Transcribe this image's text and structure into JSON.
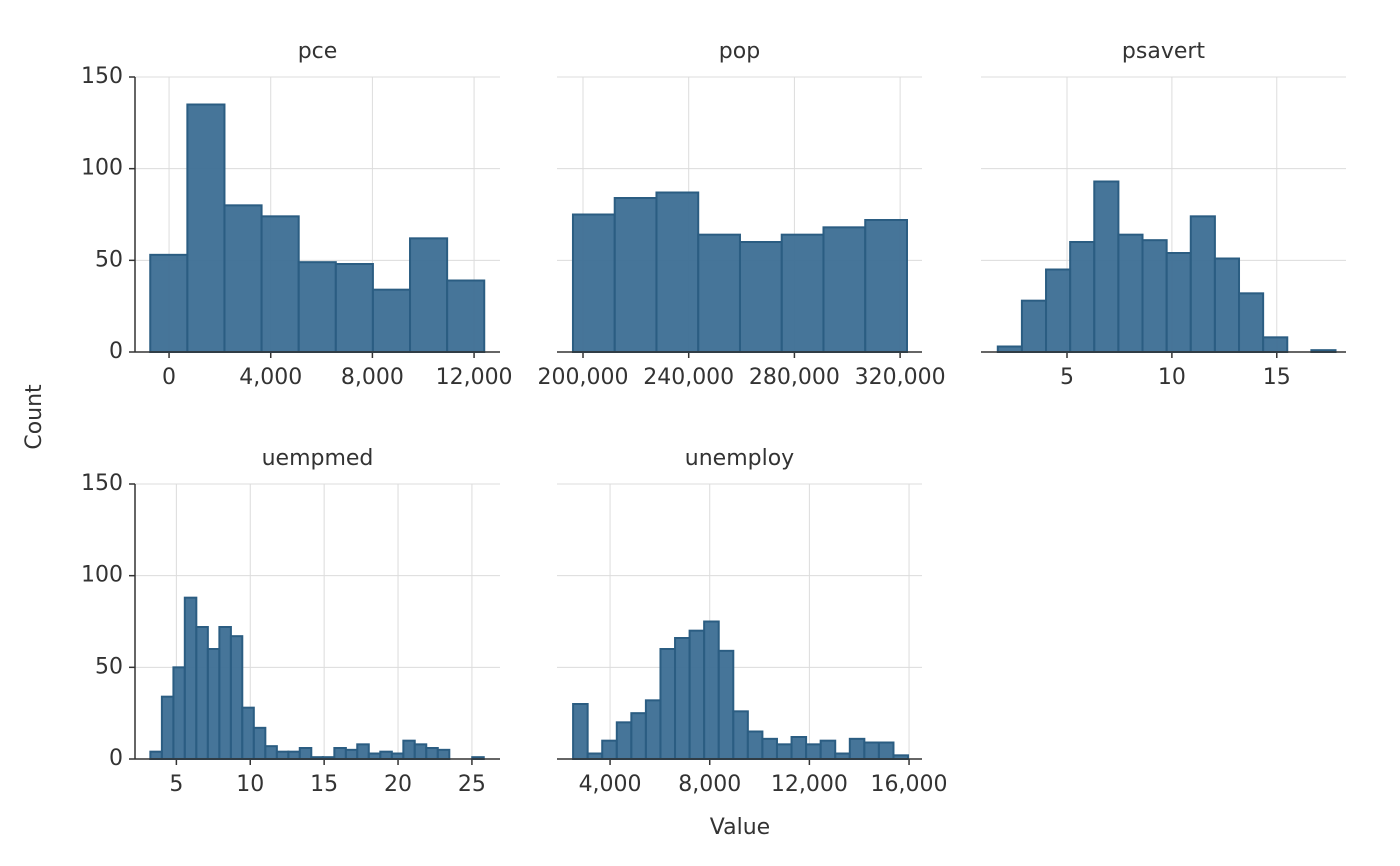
{
  "xlabel": "Value",
  "ylabel": "Count",
  "chart_data": [
    {
      "type": "histogram",
      "title": "pce",
      "color": "#3c6e93",
      "edge_color": "#2b5d82",
      "grid": true,
      "bins": [
        -740,
        720,
        2180,
        3640,
        5100,
        6560,
        8020,
        9480,
        10940,
        12400
      ],
      "values": [
        53,
        135,
        80,
        74,
        49,
        48,
        34,
        62,
        39
      ],
      "xlim": [
        -1340,
        13020
      ],
      "ylim": [
        0,
        150
      ],
      "xticks": [
        0,
        {
          "value": 4000,
          "label": "4,000"
        },
        {
          "value": 8000,
          "label": "8,000"
        },
        {
          "value": 12000,
          "label": "12,000"
        }
      ],
      "yticks": [
        0,
        50,
        100,
        150
      ]
    },
    {
      "type": "histogram",
      "title": "pop",
      "color": "#3c6e93",
      "edge_color": "#2b5d82",
      "grid": true,
      "bins": [
        196200,
        212000,
        227800,
        243600,
        259400,
        275200,
        291000,
        306800,
        322600
      ],
      "values": [
        75,
        84,
        87,
        64,
        60,
        64,
        68,
        72
      ],
      "xlim": [
        190160,
        328280
      ],
      "ylim": [
        0,
        150
      ],
      "xticks": [
        {
          "value": 200000,
          "label": "200,000"
        },
        {
          "value": 240000,
          "label": "240,000"
        },
        {
          "value": 280000,
          "label": "280,000"
        },
        {
          "value": 320000,
          "label": "320,000"
        }
      ],
      "yticks": [
        0,
        50,
        100,
        150
      ]
    },
    {
      "type": "histogram",
      "title": "psavert",
      "color": "#3c6e93",
      "edge_color": "#2b5d82",
      "grid": true,
      "bins": [
        1.7,
        2.85,
        4.0,
        5.15,
        6.3,
        7.45,
        8.6,
        9.75,
        10.9,
        12.05,
        13.2,
        14.35,
        15.5,
        16.65,
        17.8
      ],
      "values": [
        3,
        28,
        45,
        60,
        93,
        64,
        61,
        54,
        74,
        51,
        32,
        8,
        0,
        1
      ],
      "xlim": [
        0.9,
        18.3
      ],
      "ylim": [
        0,
        150
      ],
      "xticks": [
        5,
        10,
        15
      ],
      "yticks": [
        0,
        50,
        100,
        150
      ]
    },
    {
      "type": "histogram",
      "title": "uempmed",
      "color": "#3c6e93",
      "edge_color": "#2b5d82",
      "grid": true,
      "bins": [
        3.24,
        4.02,
        4.8,
        5.57,
        6.35,
        7.13,
        7.91,
        8.69,
        9.46,
        10.24,
        11.02,
        11.8,
        12.58,
        13.35,
        14.13,
        14.91,
        15.69,
        16.47,
        17.24,
        18.02,
        18.8,
        19.58,
        20.36,
        21.13,
        21.91,
        22.69,
        23.47,
        24.25,
        25.02,
        25.8
      ],
      "values": [
        4,
        34,
        50,
        88,
        72,
        60,
        72,
        67,
        28,
        17,
        7,
        4,
        4,
        6,
        1,
        1,
        6,
        5,
        8,
        3,
        4,
        3,
        10,
        8,
        6,
        5,
        0,
        0,
        1
      ],
      "xlim": [
        2.2,
        26.9
      ],
      "ylim": [
        0,
        150
      ],
      "xticks": [
        5,
        10,
        15,
        20,
        25
      ],
      "yticks": [
        0,
        50,
        100,
        150
      ]
    },
    {
      "type": "histogram",
      "title": "unemploy",
      "color": "#3c6e93",
      "edge_color": "#2b5d82",
      "grid": true,
      "bins": [
        2516,
        3100,
        3685,
        4270,
        4854,
        5438,
        6023,
        6608,
        7192,
        7776,
        8361,
        8946,
        9530,
        10114,
        10699,
        11284,
        11868,
        12452,
        13037,
        13622,
        14206,
        14790,
        15375,
        15960
      ],
      "values": [
        30,
        3,
        10,
        20,
        25,
        32,
        60,
        66,
        70,
        75,
        59,
        26,
        15,
        11,
        8,
        12,
        8,
        10,
        3,
        11,
        9,
        9,
        2
      ],
      "xlim": [
        1870,
        16520
      ],
      "ylim": [
        0,
        150
      ],
      "xticks": [
        {
          "value": 4000,
          "label": "4,000"
        },
        {
          "value": 8000,
          "label": "8,000"
        },
        {
          "value": 12000,
          "label": "12,000"
        },
        {
          "value": 16000,
          "label": "16,000"
        }
      ],
      "yticks": [
        0,
        50,
        100,
        150
      ]
    }
  ]
}
